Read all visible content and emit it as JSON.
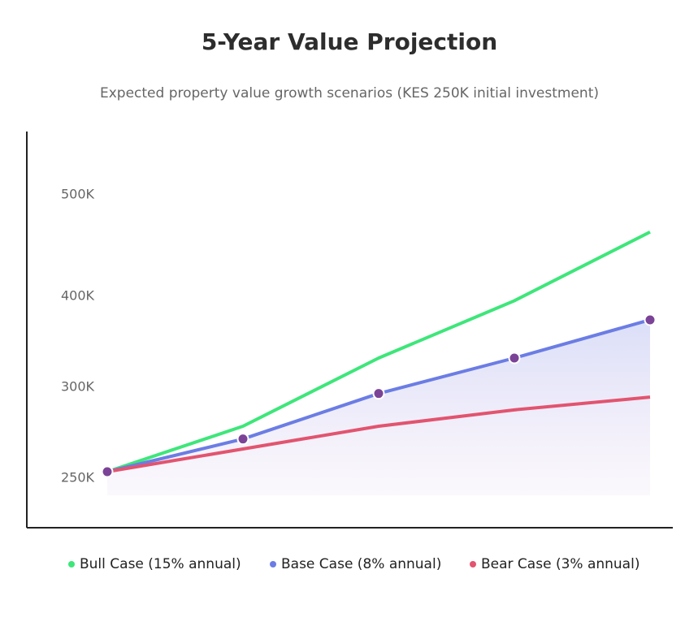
{
  "chart_data": {
    "type": "line",
    "title": "5-Year Value Projection",
    "subtitle": "Expected property value growth scenarios (KES 250K initial investment)",
    "x": [
      0,
      1,
      2,
      3,
      4
    ],
    "xlim": [
      0,
      4
    ],
    "ylim": [
      219000,
      556000
    ],
    "yticks": [
      {
        "value": 250000,
        "label": "250K"
      },
      {
        "value": 300000,
        "label": "300K"
      },
      {
        "value": 400000,
        "label": "400K"
      },
      {
        "value": 500000,
        "label": "500K"
      }
    ],
    "series": [
      {
        "name": "Bull Case (15% annual)",
        "color": "#3ee67a",
        "values": [
          250000,
          275000,
          325000,
          388000,
          457000
        ]
      },
      {
        "name": "Base Case (8% annual)",
        "color": "#6b7de4",
        "values": [
          250000,
          268000,
          293000,
          325000,
          367000
        ],
        "fill": true,
        "markers": true,
        "marker_color": "#7b4397"
      },
      {
        "name": "Bear Case (3% annual)",
        "color": "#e2546f",
        "values": [
          250000,
          262500,
          275000,
          284000,
          291000
        ]
      }
    ]
  }
}
